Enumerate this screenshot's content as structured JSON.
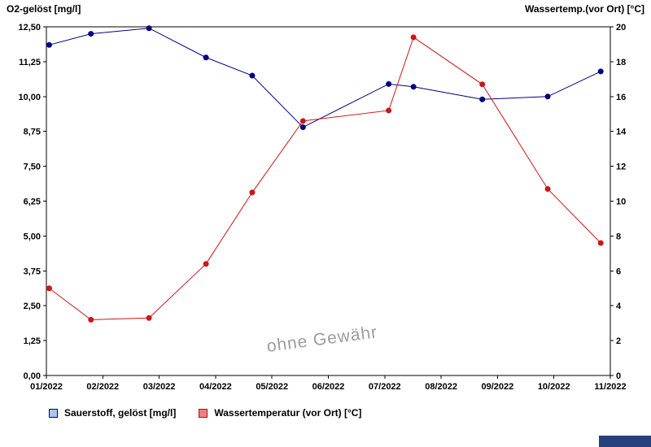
{
  "watermark": "ohne Gewähr",
  "colors": {
    "frame": "#000000",
    "o2_line": "#000080",
    "temp_line": "#cc1616",
    "watermark": "#9c9c9c",
    "corner_bar": "#26417e"
  },
  "legend": [
    {
      "label": "Sauerstoff, gelöst [mg/l]",
      "fill": "#a8c4f0",
      "border": "#000080"
    },
    {
      "label": "Wassertemperatur (vor Ort) [°C]",
      "fill": "#f07e7e",
      "border": "#b01010"
    }
  ],
  "chart_data": {
    "type": "line",
    "title": "",
    "grid": false,
    "legend_position": "bottom-left",
    "x_unit": "month index (0 = 01/2022, 10 = 11/2022)",
    "x_tick_labels": [
      "01/2022",
      "02/2022",
      "03/2022",
      "04/2022",
      "05/2022",
      "06/2022",
      "07/2022",
      "08/2022",
      "09/2022",
      "10/2022",
      "11/2022"
    ],
    "left_axis": {
      "title": "O2-gelöst [mg/l]",
      "min": 0,
      "max": 12.5,
      "tick_step": 1.25,
      "tick_labels": [
        "0,00",
        "1,25",
        "2,50",
        "3,75",
        "5,00",
        "6,25",
        "7,50",
        "8,75",
        "10,00",
        "11,25",
        "12,50"
      ]
    },
    "right_axis": {
      "title": "Wassertemp.(vor Ort) [°C]",
      "min": 0,
      "max": 20,
      "tick_step": 2,
      "tick_labels": [
        "0",
        "2",
        "4",
        "6",
        "8",
        "10",
        "12",
        "14",
        "16",
        "18",
        "20"
      ]
    },
    "series": [
      {
        "name": "Sauerstoff, gelöst [mg/l]",
        "axis": "left",
        "color": "#000080",
        "x": [
          0.05,
          0.79,
          1.82,
          2.83,
          3.65,
          4.55,
          6.07,
          6.51,
          7.73,
          8.89,
          9.83
        ],
        "values": [
          11.85,
          12.25,
          12.45,
          11.4,
          10.75,
          8.9,
          10.45,
          10.35,
          9.9,
          10.0,
          10.9
        ]
      },
      {
        "name": "Wassertemperatur (vor Ort) [°C]",
        "axis": "right",
        "color": "#cc1616",
        "x": [
          0.05,
          0.79,
          1.82,
          2.83,
          3.65,
          4.55,
          6.07,
          6.51,
          7.73,
          8.89,
          9.83
        ],
        "values": [
          5.0,
          3.2,
          3.3,
          6.4,
          10.5,
          14.6,
          15.2,
          19.4,
          16.7,
          10.7,
          7.6
        ]
      }
    ]
  }
}
